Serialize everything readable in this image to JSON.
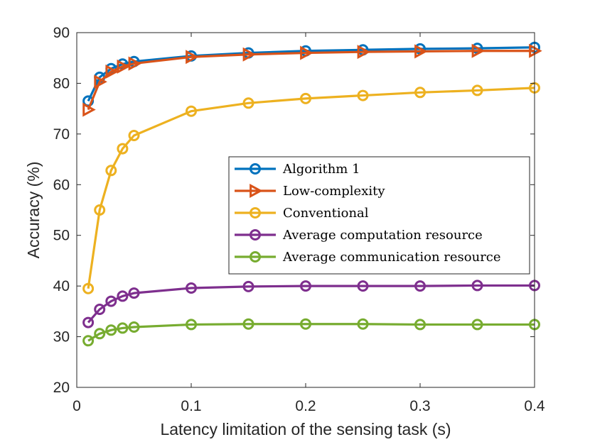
{
  "chart_data": {
    "type": "line",
    "title": "",
    "xlabel": "Latency limitation of the sensing task (s)",
    "ylabel": "Accuracy (%)",
    "xlim": [
      0,
      0.4
    ],
    "ylim": [
      20,
      90
    ],
    "xticks": [
      "0",
      "0.1",
      "0.2",
      "0.3",
      "0.4"
    ],
    "yticks": [
      "20",
      "30",
      "40",
      "50",
      "60",
      "70",
      "80",
      "90"
    ],
    "grid": false,
    "legend_position": "center-right",
    "x": [
      0.01,
      0.02,
      0.03,
      0.04,
      0.05,
      0.1,
      0.15,
      0.2,
      0.25,
      0.3,
      0.35,
      0.4
    ],
    "series": [
      {
        "name": "Algorithm 1",
        "color": "#0072BD",
        "marker": "circle",
        "values": [
          76.5,
          81.2,
          82.9,
          83.8,
          84.3,
          85.4,
          86.0,
          86.4,
          86.6,
          86.8,
          86.9,
          87.1
        ]
      },
      {
        "name": "Low-complexity",
        "color": "#D95319",
        "marker": "triangle-right",
        "values": [
          74.8,
          80.3,
          82.3,
          83.3,
          83.9,
          85.2,
          85.7,
          86.0,
          86.2,
          86.3,
          86.4,
          86.4
        ]
      },
      {
        "name": "Conventional",
        "color": "#EDB120",
        "marker": "circle",
        "values": [
          39.5,
          55.0,
          62.8,
          67.1,
          69.7,
          74.5,
          76.1,
          77.0,
          77.6,
          78.2,
          78.6,
          79.1
        ]
      },
      {
        "name": "Average computation resource",
        "color": "#7E2F8E",
        "marker": "circle",
        "values": [
          32.8,
          35.4,
          37.0,
          38.0,
          38.6,
          39.6,
          39.9,
          40.0,
          40.0,
          40.0,
          40.1,
          40.1
        ]
      },
      {
        "name": "Average communication resource",
        "color": "#77AC30",
        "marker": "circle",
        "values": [
          29.2,
          30.6,
          31.3,
          31.7,
          31.9,
          32.4,
          32.5,
          32.5,
          32.5,
          32.4,
          32.4,
          32.4
        ]
      }
    ]
  }
}
